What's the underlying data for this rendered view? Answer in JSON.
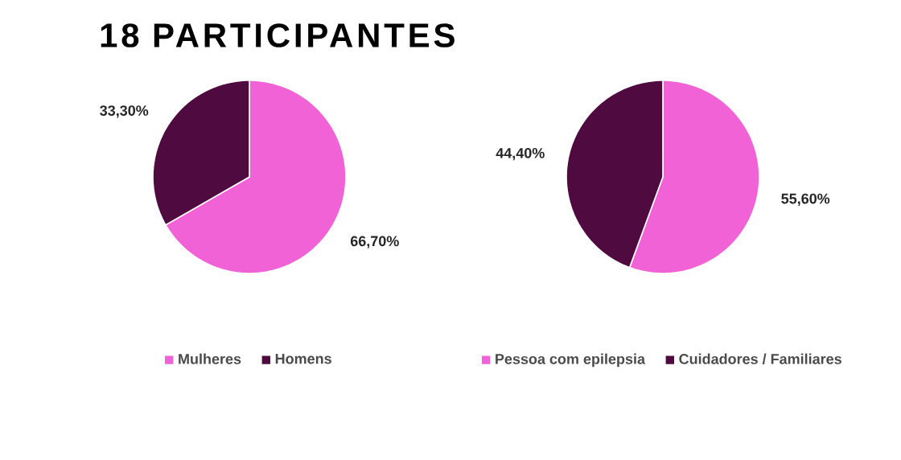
{
  "chart_data": [
    {
      "type": "pie",
      "title": "18 PARTICIPANTES",
      "categories": [
        "Mulheres",
        "Homens"
      ],
      "values": [
        66.7,
        33.3
      ],
      "value_labels": [
        "66,70%",
        "33,30%"
      ],
      "colors": [
        "#f062d6",
        "#4f0a3f"
      ],
      "legend": "bottom"
    },
    {
      "type": "pie",
      "categories": [
        "Pessoa com epilepsia",
        "Cuidadores / Familiares"
      ],
      "values": [
        55.6,
        44.4
      ],
      "value_labels": [
        "55,60%",
        "44,40%"
      ],
      "colors": [
        "#f062d6",
        "#4f0a3f"
      ],
      "legend": "bottom"
    }
  ]
}
